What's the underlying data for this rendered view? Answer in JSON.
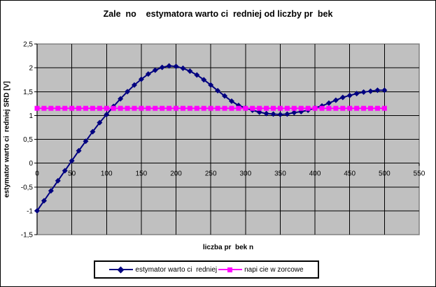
{
  "window": {
    "bg": "#ffffff",
    "border_color": "#000000"
  },
  "chart_data": {
    "type": "line",
    "title": "Zale  no    estymatora warto ci  redniej od liczby pr  bek",
    "xlabel": "liczba pr  bek n",
    "ylabel": "estymator warto ci  redniej SRD [V]",
    "xlim": [
      0,
      550
    ],
    "ylim": [
      -1.5,
      2.5
    ],
    "x_ticks": [
      0,
      50,
      100,
      150,
      200,
      250,
      300,
      350,
      400,
      450,
      500,
      550
    ],
    "x_tick_labels": [
      "0",
      "50",
      "100",
      "150",
      "200",
      "250",
      "300",
      "350",
      "400",
      "450",
      "500",
      "550"
    ],
    "y_ticks": [
      2.5,
      2,
      1.5,
      1,
      0.5,
      0,
      -0.5,
      -1,
      -1.5
    ],
    "y_tick_labels": [
      "2,5",
      "2",
      "1,5",
      "1",
      "0,5",
      "0",
      "-0,5",
      "-1",
      "-1,5"
    ],
    "grid": true,
    "plot_bg": "#c0c0c0",
    "plot_border": "#808080",
    "grid_color": "#000000",
    "axis_color": "#000000",
    "legend_position": "bottom",
    "series": [
      {
        "name": "estymator warto ci  redniej",
        "color": "#000080",
        "marker": "diamond",
        "x": [
          0,
          10,
          20,
          30,
          40,
          50,
          60,
          70,
          80,
          90,
          100,
          110,
          120,
          130,
          140,
          150,
          160,
          170,
          180,
          190,
          200,
          210,
          220,
          230,
          240,
          250,
          260,
          270,
          280,
          290,
          300,
          310,
          320,
          330,
          340,
          350,
          360,
          370,
          380,
          390,
          400,
          410,
          420,
          430,
          440,
          450,
          460,
          470,
          480,
          490,
          500
        ],
        "y": [
          -1,
          -0.79,
          -0.58,
          -0.37,
          -0.16,
          0.05,
          0.26,
          0.46,
          0.66,
          0.85,
          1.02,
          1.19,
          1.35,
          1.5,
          1.64,
          1.76,
          1.87,
          1.95,
          2.01,
          2.04,
          2.03,
          1.99,
          1.93,
          1.85,
          1.75,
          1.64,
          1.52,
          1.41,
          1.3,
          1.21,
          1.16,
          1.11,
          1.07,
          1.04,
          1.03,
          1.02,
          1.03,
          1.06,
          1.08,
          1.11,
          1.16,
          1.2,
          1.26,
          1.32,
          1.38,
          1.42,
          1.46,
          1.49,
          1.51,
          1.53,
          1.53
        ]
      },
      {
        "name": "napi cie w zorcowe",
        "color": "#ff00ff",
        "marker": "square",
        "x": [
          0,
          10,
          20,
          30,
          40,
          50,
          60,
          70,
          80,
          90,
          100,
          110,
          120,
          130,
          140,
          150,
          160,
          170,
          180,
          190,
          200,
          210,
          220,
          230,
          240,
          250,
          260,
          270,
          280,
          290,
          300,
          310,
          320,
          330,
          340,
          350,
          360,
          370,
          380,
          390,
          400,
          410,
          420,
          430,
          440,
          450,
          460,
          470,
          480,
          490,
          500
        ],
        "y": [
          1.15,
          1.15,
          1.15,
          1.15,
          1.15,
          1.15,
          1.15,
          1.15,
          1.15,
          1.15,
          1.15,
          1.15,
          1.15,
          1.15,
          1.15,
          1.15,
          1.15,
          1.15,
          1.15,
          1.15,
          1.15,
          1.15,
          1.15,
          1.15,
          1.15,
          1.15,
          1.15,
          1.15,
          1.15,
          1.15,
          1.15,
          1.15,
          1.15,
          1.15,
          1.15,
          1.15,
          1.15,
          1.15,
          1.15,
          1.15,
          1.15,
          1.15,
          1.15,
          1.15,
          1.15,
          1.15,
          1.15,
          1.15,
          1.15,
          1.15,
          1.15
        ]
      }
    ]
  }
}
